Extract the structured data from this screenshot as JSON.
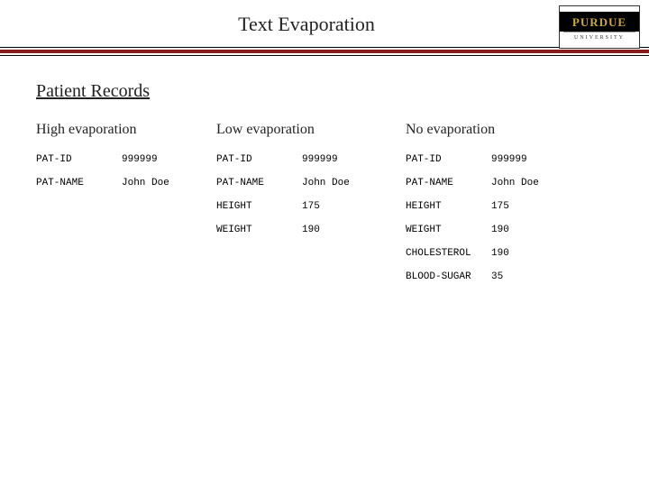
{
  "colors": {
    "rule": "#8a1c1c",
    "logo_gold": "#c9a840",
    "text": "#222222"
  },
  "header": {
    "title": "Text Evaporation",
    "logo_top": "PURDUE",
    "logo_bottom": "UNIVERSITY"
  },
  "section_title": "Patient Records",
  "columns": {
    "high": {
      "heading": "High evaporation",
      "rows": [
        {
          "label": "PAT-ID",
          "value": "999999"
        },
        {
          "label": "PAT-NAME",
          "value": "John Doe"
        }
      ]
    },
    "low": {
      "heading": "Low evaporation",
      "rows": [
        {
          "label": "PAT-ID",
          "value": "999999"
        },
        {
          "label": "PAT-NAME",
          "value": "John Doe"
        },
        {
          "label": "HEIGHT",
          "value": "175"
        },
        {
          "label": "WEIGHT",
          "value": "190"
        }
      ]
    },
    "no": {
      "heading": "No evaporation",
      "rows": [
        {
          "label": "PAT-ID",
          "value": "999999"
        },
        {
          "label": "PAT-NAME",
          "value": "John Doe"
        },
        {
          "label": "HEIGHT",
          "value": "175"
        },
        {
          "label": "WEIGHT",
          "value": "190"
        },
        {
          "label": "CHOLESTEROL",
          "value": "190"
        },
        {
          "label": "BLOOD-SUGAR",
          "value": "35"
        }
      ]
    }
  }
}
